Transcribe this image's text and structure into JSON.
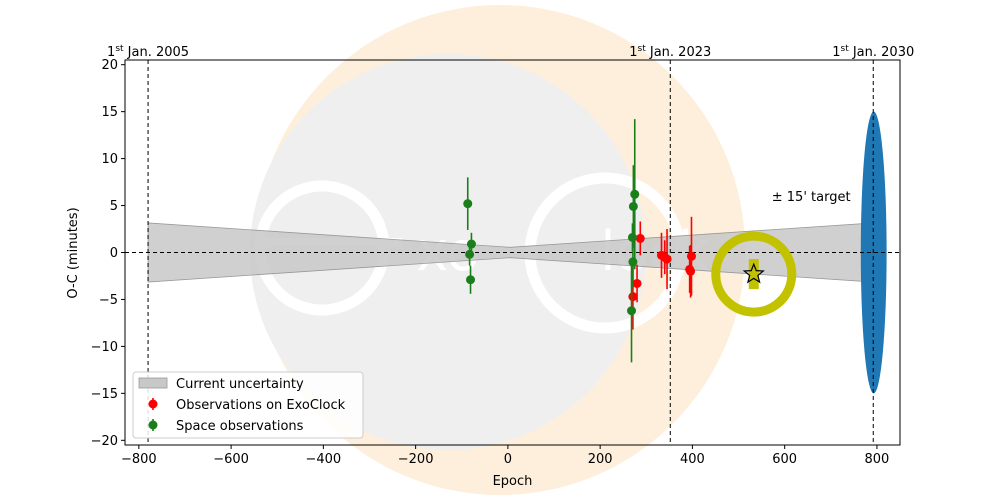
{
  "chart_data": {
    "type": "scatter",
    "xlabel": "Epoch",
    "ylabel": "O-C (minutes)",
    "xlim": [
      -830,
      850
    ],
    "ylim": [
      -20.5,
      20.5
    ],
    "x_ticks": [
      -800,
      -600,
      -400,
      -200,
      0,
      200,
      400,
      600,
      800
    ],
    "y_ticks": [
      -20,
      -15,
      -10,
      -5,
      0,
      5,
      10,
      15,
      20
    ],
    "grid": false,
    "legend_placement": "lower-left",
    "watermark": {
      "text_parts": [
        "xo",
        "lock"
      ]
    },
    "date_markers": [
      {
        "label": "1",
        "sup": "st",
        "rest": " Jan. 2005",
        "x": -780
      },
      {
        "label": "1",
        "sup": "st",
        "rest": " Jan. 2023",
        "x": 352
      },
      {
        "label": "1",
        "sup": "st",
        "rest": " Jan. 2030",
        "x": 792
      }
    ],
    "uncertainty_band": {
      "name": "Current uncertainty",
      "color": "#c8c8c8",
      "x_range": [
        -780,
        792
      ],
      "pivot_x": 5,
      "half_width_at_pivot": 0.55,
      "half_width_at_ends": 3.15
    },
    "series": [
      {
        "name": "Observations on ExoClock",
        "color": "#ff0000",
        "points": [
          {
            "x": 271,
            "y": -4.7,
            "err": 3.5
          },
          {
            "x": 280,
            "y": -3.3,
            "err": 2.0
          },
          {
            "x": 287,
            "y": 1.5,
            "err": 1.8
          },
          {
            "x": 333,
            "y": -0.3,
            "err": 2.4
          },
          {
            "x": 340,
            "y": -0.5,
            "err": 1.8
          },
          {
            "x": 345,
            "y": -0.7,
            "err": 3.2
          },
          {
            "x": 394,
            "y": -1.8,
            "err": 2.5
          },
          {
            "x": 396,
            "y": -2.0,
            "err": 2.8
          },
          {
            "x": 398,
            "y": -0.4,
            "err": 4.2
          }
        ]
      },
      {
        "name": "Space observations",
        "color": "#1a7f1a",
        "points": [
          {
            "x": -87,
            "y": 5.2,
            "err": 2.8
          },
          {
            "x": -83,
            "y": -0.2,
            "err": 1.2
          },
          {
            "x": -79,
            "y": 0.9,
            "err": 1.2
          },
          {
            "x": -81,
            "y": -2.9,
            "err": 1.5
          },
          {
            "x": 268,
            "y": -6.2,
            "err": 5.5
          },
          {
            "x": 270,
            "y": 1.6,
            "err": 1.5
          },
          {
            "x": 271,
            "y": -1.0,
            "err": 2.8
          },
          {
            "x": 272,
            "y": 4.9,
            "err": 4.4
          },
          {
            "x": 275,
            "y": 6.2,
            "err": 8.0
          }
        ]
      }
    ],
    "target": {
      "x": 533,
      "y": -2.3,
      "box_half_height": 1.6,
      "ring_color": "#c2c200",
      "marker": "star"
    },
    "ellipse": {
      "x": 793,
      "y": 0,
      "half_height": 15,
      "half_width_epoch": 28,
      "color": "#1f77b4"
    },
    "annotation": {
      "text": "± 15' target",
      "x": 572,
      "y": 5.5
    }
  }
}
